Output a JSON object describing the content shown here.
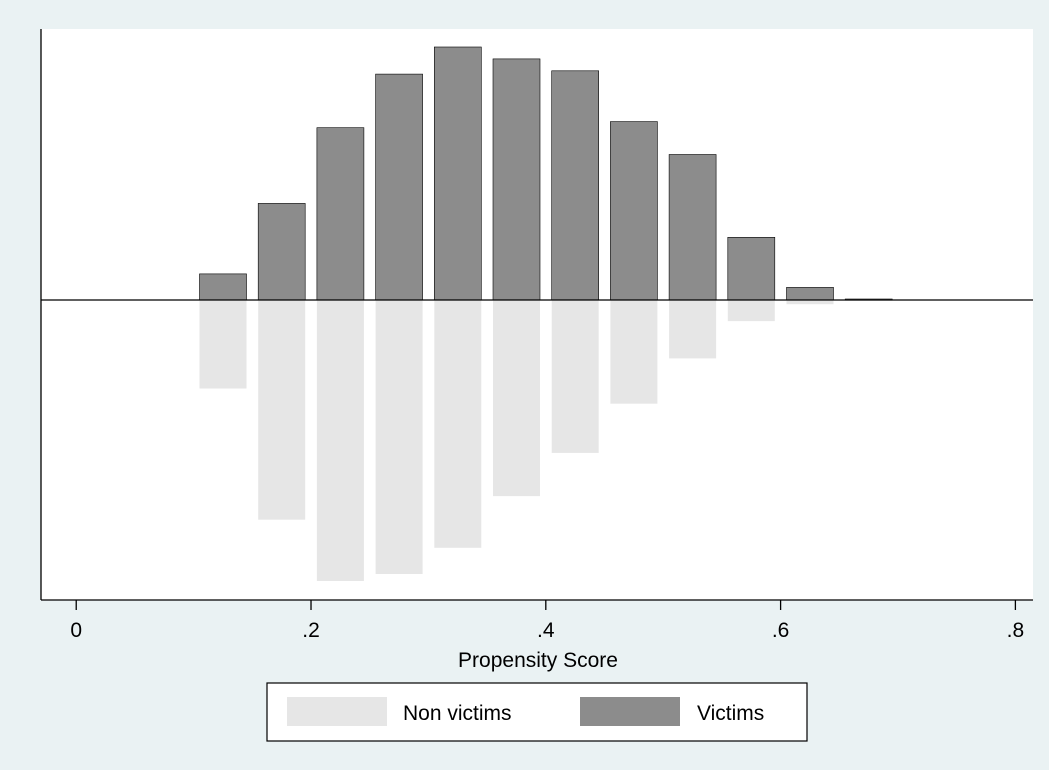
{
  "chart_data": {
    "type": "bar",
    "subtype": "mirrored-histogram",
    "title": "",
    "xlabel": "Propensity Score",
    "ylabel": "",
    "xlim": [
      -0.03,
      0.815
    ],
    "grid": false,
    "legend_position": "bottom",
    "x_ticks": [
      {
        "value": 0,
        "label": "0"
      },
      {
        "value": 0.2,
        "label": ".2"
      },
      {
        "value": 0.4,
        "label": ".4"
      },
      {
        "value": 0.6,
        "label": ".6"
      },
      {
        "value": 0.8,
        "label": ".8"
      }
    ],
    "bins": [
      {
        "from": 0.1,
        "to": 0.15
      },
      {
        "from": 0.15,
        "to": 0.2
      },
      {
        "from": 0.2,
        "to": 0.25
      },
      {
        "from": 0.25,
        "to": 0.3
      },
      {
        "from": 0.3,
        "to": 0.35
      },
      {
        "from": 0.35,
        "to": 0.4
      },
      {
        "from": 0.4,
        "to": 0.45
      },
      {
        "from": 0.45,
        "to": 0.5
      },
      {
        "from": 0.5,
        "to": 0.55
      },
      {
        "from": 0.55,
        "to": 0.6
      },
      {
        "from": 0.6,
        "to": 0.65
      },
      {
        "from": 0.65,
        "to": 0.7
      }
    ],
    "series": [
      {
        "name": "Victims",
        "direction": "up",
        "color": "#8c8c8c",
        "values": [
          0.103,
          0.382,
          0.681,
          0.893,
          1.0,
          0.953,
          0.906,
          0.705,
          0.575,
          0.248,
          0.05,
          0.004
        ]
      },
      {
        "name": "Non victims",
        "direction": "down",
        "color": "#e6e6e6",
        "values": [
          0.315,
          0.782,
          1.0,
          0.975,
          0.882,
          0.698,
          0.544,
          0.369,
          0.208,
          0.075,
          0.015,
          0.002
        ]
      }
    ],
    "legend": [
      "Non victims",
      "Victims"
    ]
  }
}
